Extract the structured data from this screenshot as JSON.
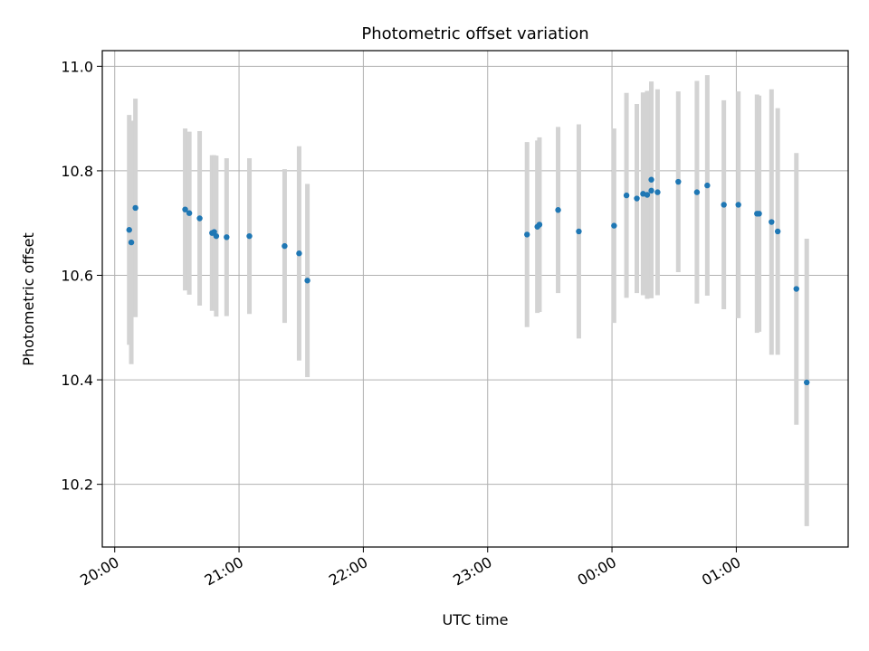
{
  "chart_data": {
    "type": "scatter",
    "title": "Photometric offset variation",
    "xlabel": "UTC time",
    "ylabel": "Photometric offset",
    "x_ticks": [
      "20:00",
      "21:00",
      "22:00",
      "23:00",
      "00:00",
      "01:00"
    ],
    "y_ticks": [
      "10.2",
      "10.4",
      "10.6",
      "10.8",
      "11.0"
    ],
    "x_range": [
      "19:54",
      "01:54"
    ],
    "ylim": [
      10.08,
      11.03
    ],
    "grid": true,
    "colors": {
      "marker": "#1f77b4",
      "errorbar": "#d3d3d3",
      "grid": "#b0b0b0"
    },
    "series": [
      {
        "points": [
          {
            "x": "20:07",
            "y": 10.687,
            "err": 0.22
          },
          {
            "x": "20:08",
            "y": 10.663,
            "err": 0.233
          },
          {
            "x": "20:10",
            "y": 10.729,
            "err": 0.209
          },
          {
            "x": "20:34",
            "y": 10.726,
            "err": 0.155
          },
          {
            "x": "20:36",
            "y": 10.719,
            "err": 0.156
          },
          {
            "x": "20:41",
            "y": 10.709,
            "err": 0.167
          },
          {
            "x": "20:47",
            "y": 10.681,
            "err": 0.149
          },
          {
            "x": "20:48",
            "y": 10.683,
            "err": 0.147
          },
          {
            "x": "20:49",
            "y": 10.675,
            "err": 0.154
          },
          {
            "x": "20:54",
            "y": 10.673,
            "err": 0.151
          },
          {
            "x": "21:05",
            "y": 10.675,
            "err": 0.149
          },
          {
            "x": "21:22",
            "y": 10.656,
            "err": 0.147
          },
          {
            "x": "21:29",
            "y": 10.642,
            "err": 0.205
          },
          {
            "x": "21:33",
            "y": 10.59,
            "err": 0.185
          },
          {
            "x": "23:19",
            "y": 10.678,
            "err": 0.177
          },
          {
            "x": "23:24",
            "y": 10.693,
            "err": 0.165
          },
          {
            "x": "23:25",
            "y": 10.697,
            "err": 0.167
          },
          {
            "x": "23:34",
            "y": 10.725,
            "err": 0.159
          },
          {
            "x": "23:44",
            "y": 10.684,
            "err": 0.205
          },
          {
            "x": "00:01",
            "y": 10.695,
            "err": 0.186
          },
          {
            "x": "00:07",
            "y": 10.753,
            "err": 0.196
          },
          {
            "x": "00:12",
            "y": 10.747,
            "err": 0.181
          },
          {
            "x": "00:15",
            "y": 10.756,
            "err": 0.194
          },
          {
            "x": "00:17",
            "y": 10.754,
            "err": 0.199
          },
          {
            "x": "00:19",
            "y": 10.783,
            "err": 0.188
          },
          {
            "x": "00:19",
            "y": 10.762,
            "err": 0.206
          },
          {
            "x": "00:22",
            "y": 10.759,
            "err": 0.197
          },
          {
            "x": "00:32",
            "y": 10.779,
            "err": 0.173
          },
          {
            "x": "00:41",
            "y": 10.759,
            "err": 0.213
          },
          {
            "x": "00:46",
            "y": 10.772,
            "err": 0.211
          },
          {
            "x": "00:54",
            "y": 10.735,
            "err": 0.2
          },
          {
            "x": "01:01",
            "y": 10.735,
            "err": 0.217
          },
          {
            "x": "01:10",
            "y": 10.718,
            "err": 0.228
          },
          {
            "x": "01:11",
            "y": 10.718,
            "err": 0.226
          },
          {
            "x": "01:17",
            "y": 10.702,
            "err": 0.254
          },
          {
            "x": "01:20",
            "y": 10.684,
            "err": 0.236
          },
          {
            "x": "01:29",
            "y": 10.574,
            "err": 0.26
          },
          {
            "x": "01:34",
            "y": 10.395,
            "err": 0.275
          }
        ]
      }
    ]
  }
}
